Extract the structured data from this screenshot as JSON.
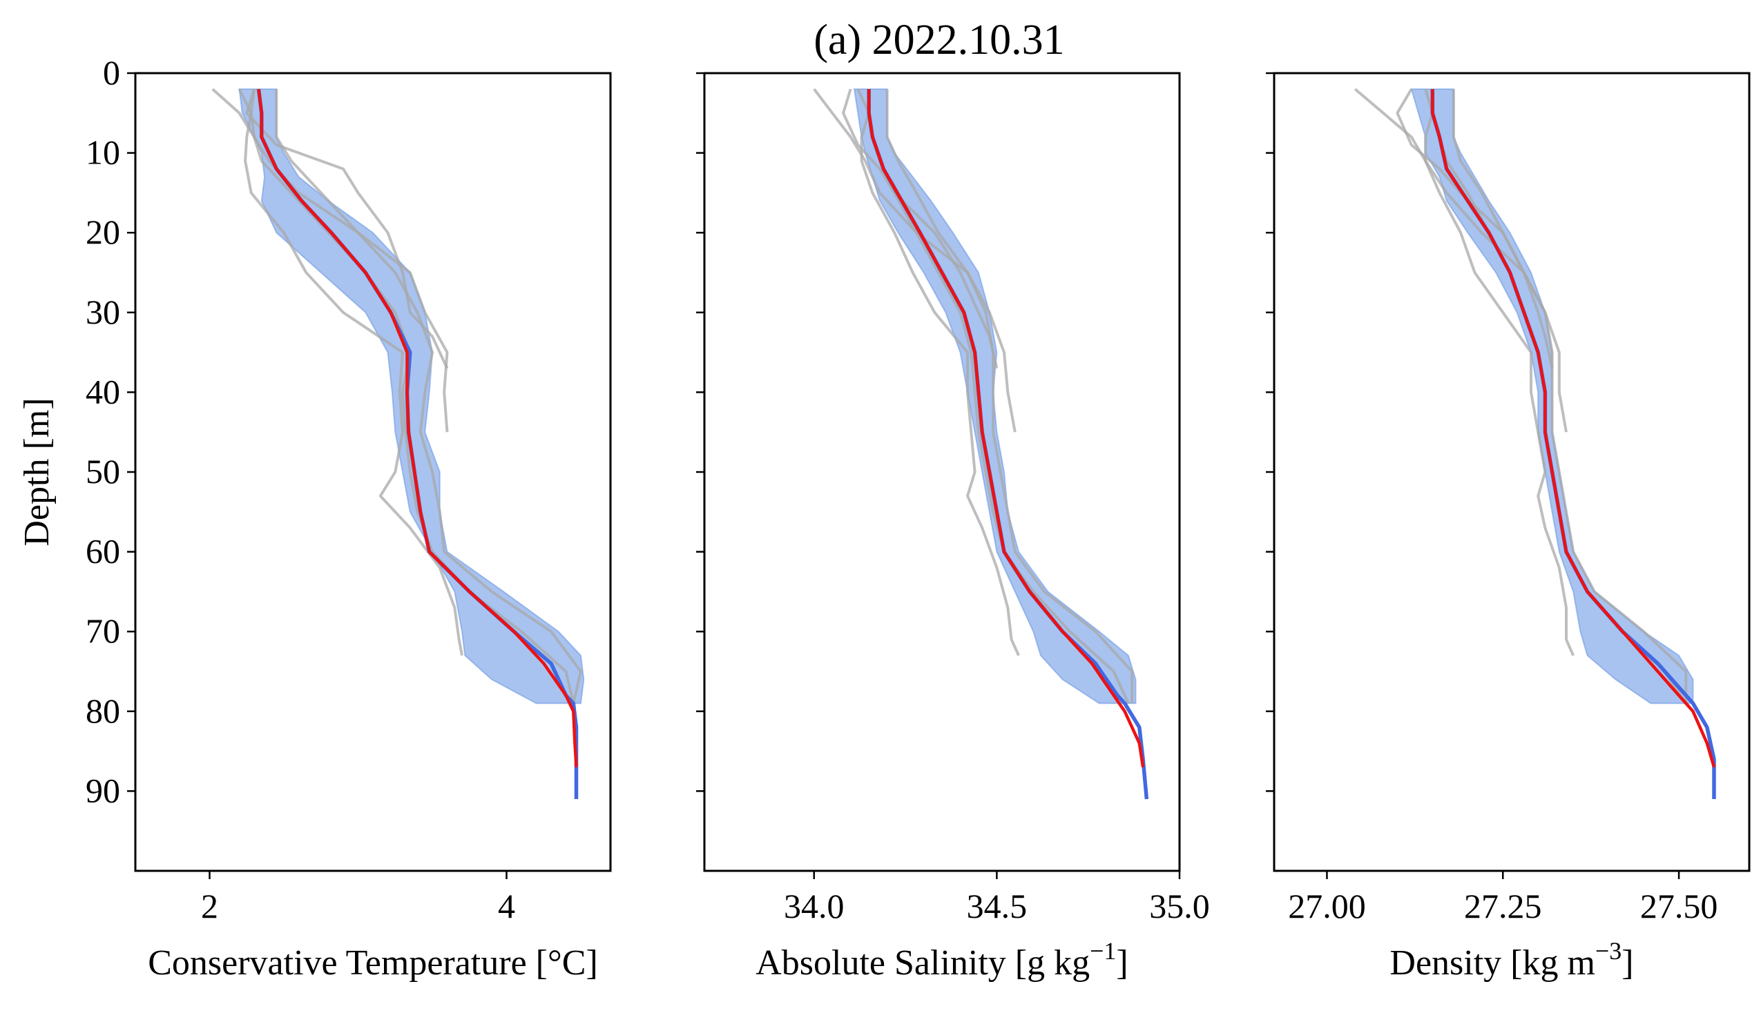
{
  "title": "(a) 2022.10.31",
  "chart_data": [
    {
      "type": "line",
      "xlabel": "Conservative Temperature [°C]",
      "ylabel": "Depth [m]",
      "xlim": [
        1.5,
        4.7
      ],
      "ylim": [
        100,
        0
      ],
      "xticks": [
        2,
        4
      ],
      "xtick_labels": [
        "2",
        "4"
      ],
      "yticks": [
        0,
        10,
        20,
        30,
        40,
        50,
        60,
        70,
        80,
        90
      ],
      "ytick_labels": [
        "0",
        "10",
        "20",
        "30",
        "40",
        "50",
        "60",
        "70",
        "80",
        "90"
      ],
      "show_yticklabels": true,
      "band": {
        "depth": [
          2,
          5,
          8,
          10,
          13,
          16,
          20,
          25,
          30,
          35,
          40,
          45,
          50,
          55,
          60,
          65,
          70,
          73,
          76,
          79
        ],
        "low": [
          2.2,
          2.22,
          2.3,
          2.35,
          2.37,
          2.35,
          2.45,
          2.75,
          3.05,
          3.2,
          3.23,
          3.25,
          3.3,
          3.35,
          3.5,
          3.65,
          3.7,
          3.72,
          3.9,
          4.2
        ],
        "high": [
          2.45,
          2.45,
          2.45,
          2.5,
          2.6,
          2.8,
          3.1,
          3.35,
          3.45,
          3.5,
          3.48,
          3.45,
          3.55,
          3.55,
          3.6,
          3.98,
          4.35,
          4.5,
          4.52,
          4.5
        ]
      },
      "profiles": [
        {
          "depth": [
            2,
            5,
            8,
            11,
            15,
            20,
            25,
            30,
            35,
            40,
            45,
            50,
            55,
            60,
            65,
            70,
            75,
            79
          ],
          "value": [
            2.3,
            2.28,
            2.3,
            2.35,
            2.55,
            2.8,
            3.05,
            3.25,
            3.35,
            3.3,
            3.32,
            3.35,
            3.4,
            3.5,
            3.75,
            4.1,
            4.4,
            4.45
          ]
        },
        {
          "depth": [
            2,
            5,
            8,
            11,
            15,
            20,
            25,
            30,
            35,
            40,
            45,
            50,
            53,
            57,
            62,
            67,
            71,
            73
          ],
          "value": [
            2.2,
            2.28,
            2.25,
            2.24,
            2.28,
            2.5,
            2.65,
            2.9,
            3.3,
            3.28,
            3.3,
            3.25,
            3.15,
            3.35,
            3.55,
            3.65,
            3.68,
            3.7
          ]
        },
        {
          "depth": [
            2,
            5,
            8,
            11,
            15,
            20,
            25,
            30,
            35,
            40,
            45,
            50,
            55,
            60,
            65,
            70,
            75,
            79
          ],
          "value": [
            2.45,
            2.45,
            2.45,
            2.55,
            2.75,
            3.0,
            3.25,
            3.4,
            3.5,
            3.45,
            3.42,
            3.5,
            3.55,
            3.58,
            3.9,
            4.3,
            4.5,
            4.45
          ]
        },
        {
          "depth": [
            2,
            5,
            8,
            11,
            15,
            20,
            25,
            30,
            35,
            40,
            45
          ],
          "value": [
            2.02,
            2.2,
            2.3,
            2.4,
            2.6,
            3.0,
            3.35,
            3.45,
            3.6,
            3.58,
            3.6
          ]
        },
        {
          "depth": [
            2,
            5,
            9,
            12,
            15,
            20,
            25,
            30,
            33,
            37
          ],
          "value": [
            2.3,
            2.25,
            2.45,
            2.9,
            3.0,
            3.2,
            3.3,
            3.35,
            3.5,
            3.6
          ]
        }
      ],
      "blue_mean": {
        "depth": [
          2,
          5,
          8,
          12,
          16,
          20,
          25,
          30,
          35,
          40,
          45,
          50,
          55,
          60,
          65,
          70,
          74,
          78,
          79,
          82,
          86,
          91
        ],
        "value": [
          2.33,
          2.35,
          2.35,
          2.45,
          2.62,
          2.82,
          3.05,
          3.22,
          3.35,
          3.33,
          3.34,
          3.38,
          3.42,
          3.48,
          3.75,
          4.05,
          4.3,
          4.4,
          4.45,
          4.47,
          4.47,
          4.47
        ]
      },
      "red_mean": {
        "depth": [
          2,
          5,
          8,
          12,
          16,
          20,
          25,
          30,
          35,
          40,
          45,
          50,
          55,
          60,
          65,
          70,
          74,
          78,
          80,
          84,
          87
        ],
        "value": [
          2.33,
          2.35,
          2.35,
          2.45,
          2.62,
          2.82,
          3.05,
          3.22,
          3.33,
          3.33,
          3.34,
          3.38,
          3.42,
          3.48,
          3.75,
          4.05,
          4.25,
          4.4,
          4.45,
          4.46,
          4.47
        ]
      }
    },
    {
      "type": "line",
      "xlabel": "Absolute Salinity [g kg",
      "xlabel_sup": "−1",
      "xlabel_end": "]",
      "ylabel": "",
      "xlim": [
        33.7,
        35.0
      ],
      "ylim": [
        100,
        0
      ],
      "xticks": [
        34.0,
        34.5,
        35.0
      ],
      "xtick_labels": [
        "34.0",
        "34.5",
        "35.0"
      ],
      "yticks": [
        0,
        10,
        20,
        30,
        40,
        50,
        60,
        70,
        80,
        90
      ],
      "show_yticklabels": false,
      "band": {
        "depth": [
          2,
          5,
          8,
          10,
          13,
          16,
          20,
          25,
          30,
          35,
          40,
          45,
          50,
          55,
          60,
          65,
          70,
          73,
          76,
          79
        ],
        "low": [
          34.11,
          34.12,
          34.13,
          34.14,
          34.16,
          34.18,
          34.23,
          34.3,
          34.36,
          34.4,
          34.42,
          34.44,
          34.46,
          34.48,
          34.5,
          34.55,
          34.6,
          34.62,
          34.68,
          34.78
        ],
        "high": [
          34.2,
          34.2,
          34.2,
          34.22,
          34.27,
          34.32,
          34.38,
          34.45,
          34.48,
          34.5,
          34.49,
          34.5,
          34.52,
          34.53,
          34.56,
          34.64,
          34.78,
          34.86,
          34.88,
          34.88
        ]
      },
      "profiles": [
        {
          "depth": [
            2,
            5,
            8,
            11,
            15,
            20,
            25,
            30,
            35,
            40,
            45,
            50,
            55,
            60,
            65,
            70,
            75,
            79
          ],
          "value": [
            34.15,
            34.15,
            34.16,
            34.18,
            34.22,
            34.28,
            34.34,
            34.4,
            34.43,
            34.44,
            34.45,
            34.47,
            34.49,
            34.52,
            34.6,
            34.7,
            34.82,
            34.86
          ]
        },
        {
          "depth": [
            2,
            5,
            8,
            11,
            15,
            20,
            25,
            30,
            35,
            40,
            45,
            50,
            53,
            57,
            62,
            67,
            71,
            73
          ],
          "value": [
            34.12,
            34.15,
            34.13,
            34.13,
            34.16,
            34.22,
            34.27,
            34.33,
            34.42,
            34.42,
            34.43,
            34.44,
            34.42,
            34.46,
            34.5,
            34.53,
            34.54,
            34.56
          ]
        },
        {
          "depth": [
            2,
            5,
            8,
            11,
            15,
            20,
            25,
            30,
            35,
            40,
            45,
            50,
            55,
            60,
            65,
            70,
            75,
            79
          ],
          "value": [
            34.2,
            34.2,
            34.2,
            34.23,
            34.28,
            34.34,
            34.42,
            34.47,
            34.49,
            34.49,
            34.49,
            34.51,
            34.53,
            34.55,
            34.63,
            34.77,
            34.87,
            34.87
          ]
        },
        {
          "depth": [
            2,
            5,
            8,
            11,
            15,
            20,
            25,
            30,
            35,
            40,
            45
          ],
          "value": [
            34.0,
            34.05,
            34.1,
            34.14,
            34.18,
            34.28,
            34.42,
            34.48,
            34.52,
            34.53,
            34.55
          ]
        },
        {
          "depth": [
            2,
            5,
            9,
            12,
            15,
            20,
            25,
            30,
            33,
            37
          ],
          "value": [
            34.1,
            34.08,
            34.12,
            34.18,
            34.22,
            34.33,
            34.4,
            34.45,
            34.48,
            34.5
          ]
        }
      ],
      "blue_mean": {
        "depth": [
          2,
          5,
          8,
          12,
          16,
          20,
          25,
          30,
          35,
          40,
          45,
          50,
          55,
          60,
          65,
          70,
          74,
          78,
          79,
          82,
          86,
          91
        ],
        "value": [
          34.15,
          34.15,
          34.16,
          34.19,
          34.24,
          34.29,
          34.35,
          34.41,
          34.44,
          34.45,
          34.46,
          34.48,
          34.5,
          34.52,
          34.59,
          34.68,
          34.77,
          34.83,
          34.85,
          34.89,
          34.9,
          34.91
        ]
      },
      "red_mean": {
        "depth": [
          2,
          5,
          8,
          12,
          16,
          20,
          25,
          30,
          35,
          40,
          45,
          50,
          55,
          60,
          65,
          70,
          74,
          78,
          80,
          84,
          87
        ],
        "value": [
          34.15,
          34.15,
          34.16,
          34.19,
          34.24,
          34.29,
          34.35,
          34.41,
          34.44,
          34.45,
          34.46,
          34.48,
          34.5,
          34.52,
          34.59,
          34.68,
          34.76,
          34.82,
          34.85,
          34.89,
          34.9
        ]
      }
    },
    {
      "type": "line",
      "xlabel": "Density [kg m",
      "xlabel_sup": "−3",
      "xlabel_end": "]",
      "ylabel": "",
      "xlim": [
        26.925,
        27.6
      ],
      "ylim": [
        100,
        0
      ],
      "xticks": [
        27.0,
        27.25,
        27.5
      ],
      "xtick_labels": [
        "27.00",
        "27.25",
        "27.50"
      ],
      "yticks": [
        0,
        10,
        20,
        30,
        40,
        50,
        60,
        70,
        80,
        90
      ],
      "show_yticklabels": false,
      "band": {
        "depth": [
          2,
          5,
          8,
          10,
          13,
          16,
          20,
          25,
          30,
          35,
          40,
          45,
          50,
          55,
          60,
          65,
          70,
          73,
          76,
          79
        ],
        "low": [
          27.12,
          27.13,
          27.14,
          27.14,
          27.16,
          27.17,
          27.2,
          27.24,
          27.27,
          27.29,
          27.3,
          27.3,
          27.31,
          27.32,
          27.33,
          27.35,
          27.36,
          27.37,
          27.41,
          27.46
        ],
        "high": [
          27.18,
          27.18,
          27.18,
          27.19,
          27.21,
          27.23,
          27.26,
          27.29,
          27.31,
          27.32,
          27.32,
          27.32,
          27.33,
          27.34,
          27.35,
          27.38,
          27.45,
          27.5,
          27.52,
          27.52
        ]
      },
      "profiles": [
        {
          "depth": [
            2,
            5,
            8,
            11,
            15,
            20,
            25,
            30,
            35,
            40,
            45,
            50,
            55,
            60,
            65,
            70,
            75,
            79
          ],
          "value": [
            27.15,
            27.15,
            27.16,
            27.17,
            27.2,
            27.23,
            27.26,
            27.28,
            27.3,
            27.31,
            27.31,
            27.32,
            27.33,
            27.34,
            27.37,
            27.42,
            27.48,
            27.51
          ]
        },
        {
          "depth": [
            2,
            5,
            8,
            11,
            15,
            20,
            25,
            30,
            35,
            40,
            45,
            50,
            53,
            57,
            62,
            67,
            71,
            73
          ],
          "value": [
            27.14,
            27.15,
            27.14,
            27.14,
            27.16,
            27.19,
            27.21,
            27.25,
            27.29,
            27.29,
            27.3,
            27.31,
            27.3,
            27.31,
            27.33,
            27.34,
            27.34,
            27.35
          ]
        },
        {
          "depth": [
            2,
            5,
            8,
            11,
            15,
            20,
            25,
            30,
            35,
            40,
            45,
            50,
            55,
            60,
            65,
            70,
            75,
            79
          ],
          "value": [
            27.18,
            27.18,
            27.18,
            27.19,
            27.22,
            27.25,
            27.28,
            27.31,
            27.32,
            27.32,
            27.32,
            27.33,
            27.34,
            27.35,
            27.38,
            27.45,
            27.51,
            27.51
          ]
        },
        {
          "depth": [
            2,
            5,
            8,
            11,
            15,
            20,
            25,
            30,
            35,
            40,
            45
          ],
          "value": [
            27.04,
            27.08,
            27.12,
            27.14,
            27.17,
            27.22,
            27.28,
            27.31,
            27.33,
            27.33,
            27.34
          ]
        },
        {
          "depth": [
            2,
            5,
            9,
            12,
            15,
            20,
            25,
            30,
            33,
            37
          ],
          "value": [
            27.12,
            27.1,
            27.12,
            27.16,
            27.19,
            27.25,
            27.28,
            27.3,
            27.31,
            27.32
          ]
        }
      ],
      "blue_mean": {
        "depth": [
          2,
          5,
          8,
          12,
          16,
          20,
          25,
          30,
          35,
          40,
          45,
          50,
          55,
          60,
          65,
          70,
          74,
          78,
          79,
          82,
          86,
          91
        ],
        "value": [
          27.15,
          27.15,
          27.16,
          27.17,
          27.2,
          27.23,
          27.26,
          27.28,
          27.3,
          27.31,
          27.31,
          27.32,
          27.33,
          27.34,
          27.37,
          27.42,
          27.47,
          27.51,
          27.52,
          27.54,
          27.55,
          27.55
        ]
      },
      "red_mean": {
        "depth": [
          2,
          5,
          8,
          12,
          16,
          20,
          25,
          30,
          35,
          40,
          45,
          50,
          55,
          60,
          65,
          70,
          74,
          78,
          80,
          84,
          87
        ],
        "value": [
          27.15,
          27.15,
          27.16,
          27.17,
          27.2,
          27.23,
          27.26,
          27.28,
          27.3,
          27.31,
          27.31,
          27.32,
          27.33,
          27.34,
          27.37,
          27.42,
          27.46,
          27.5,
          27.52,
          27.54,
          27.55
        ]
      }
    }
  ],
  "colors": {
    "band": "#6f9be6",
    "blue_mean": "#4169e1",
    "red_mean": "#ee1111",
    "profiles": "#a8a8a8"
  }
}
